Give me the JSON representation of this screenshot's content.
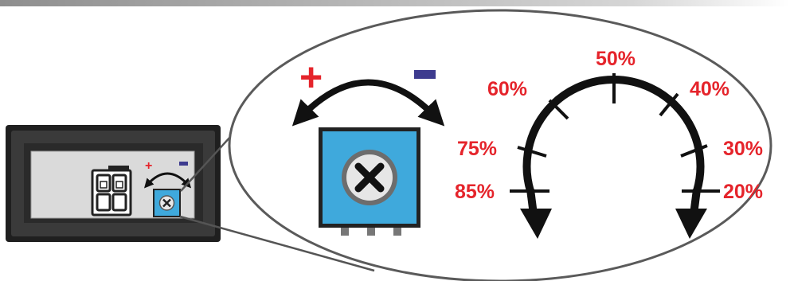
{
  "colors": {
    "accent_red": "#e5242b",
    "minus_blue": "#3d3b8f",
    "pot_blue": "#3fa9dc",
    "device_body": "#2b2b2b",
    "panel_gray": "#d9d9d9",
    "outline_gray": "#666666"
  },
  "icons": {
    "plus": "+",
    "minus": "−",
    "rotate": "double-arrow",
    "adjust": "x-screw"
  },
  "device": {
    "plus_sign": "+"
  },
  "zoom": {
    "plus_sign": "+"
  },
  "dial": {
    "labels": [
      "85%",
      "75%",
      "60%",
      "50%",
      "40%",
      "30%",
      "20%"
    ]
  }
}
